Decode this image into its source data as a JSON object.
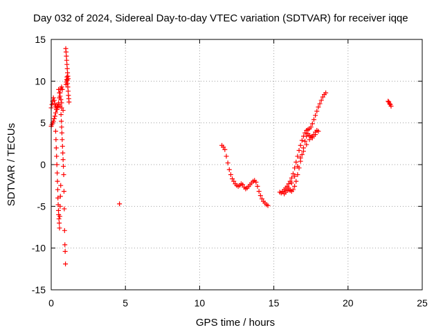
{
  "chart_data": {
    "type": "scatter",
    "title": "Day 032 of 2024, Sidereal Day-to-day VTEC variation (SDTVAR) for receiver iqqe",
    "xlabel": "GPS time / hours",
    "ylabel": "SDTVAR / TECUs",
    "xlim": [
      0,
      25
    ],
    "ylim": [
      -15,
      15
    ],
    "grid": true,
    "marker": "+",
    "xticks": [
      0,
      5,
      10,
      15,
      20,
      25
    ],
    "yticks": [
      -15,
      -10,
      -5,
      0,
      5,
      10,
      15
    ],
    "xtick_labels": [
      "0",
      "5",
      "10",
      "15",
      "20",
      "25"
    ],
    "ytick_labels": [
      "-15",
      "-10",
      "-5",
      "0",
      "5",
      "10",
      "15"
    ],
    "series": [
      {
        "name": "SDTVAR",
        "color": "#ff0000",
        "x": [
          0.0,
          0.05,
          0.1,
          0.15,
          0.2,
          0.25,
          0.3,
          0.35,
          0.4,
          0.45,
          0.5,
          0.55,
          0.6,
          0.65,
          0.7,
          0.75,
          0.0,
          0.05,
          0.1,
          0.15,
          0.2,
          0.25,
          0.3,
          0.35,
          0.4,
          0.5,
          0.6,
          0.7,
          0.8,
          0.3,
          0.32,
          0.34,
          0.36,
          0.38,
          0.4,
          0.42,
          0.44,
          0.45,
          0.47,
          0.49,
          0.5,
          0.52,
          0.54,
          0.56,
          0.58,
          0.6,
          0.62,
          0.64,
          0.66,
          0.68,
          0.7,
          0.72,
          0.74,
          0.76,
          0.78,
          0.8,
          0.82,
          0.84,
          0.86,
          0.88,
          0.9,
          0.92,
          0.94,
          0.96,
          0.98,
          1.0,
          1.02,
          1.04,
          1.06,
          1.08,
          1.1,
          1.12,
          1.14,
          1.0,
          1.02,
          1.04,
          1.06,
          1.08,
          1.1,
          1.12,
          1.14,
          1.16,
          1.18,
          1.2,
          0.5,
          0.55,
          0.6,
          0.65,
          0.7,
          4.6,
          11.5,
          11.6,
          11.7,
          11.8,
          11.9,
          12.0,
          12.1,
          12.2,
          12.3,
          12.4,
          12.5,
          12.6,
          12.7,
          12.8,
          12.9,
          13.0,
          13.1,
          13.2,
          13.3,
          13.4,
          13.5,
          13.6,
          13.7,
          13.8,
          13.9,
          14.0,
          14.1,
          14.2,
          14.3,
          14.4,
          14.5,
          14.6,
          15.4,
          15.5,
          15.6,
          15.7,
          15.8,
          15.9,
          16.0,
          16.1,
          16.2,
          16.3,
          16.4,
          16.5,
          16.6,
          16.7,
          16.8,
          16.9,
          17.0,
          17.1,
          17.2,
          17.3,
          17.4,
          17.5,
          17.6,
          17.7,
          17.8,
          17.9,
          18.0,
          18.1,
          18.2,
          18.3,
          18.4,
          18.5,
          15.7,
          15.8,
          15.9,
          16.0,
          16.1,
          16.2,
          16.3,
          16.4,
          16.5,
          16.6,
          16.7,
          16.8,
          16.9,
          17.0,
          17.1,
          17.2,
          17.3,
          17.4,
          17.5,
          17.6,
          17.7,
          17.8,
          17.9,
          18.0,
          16.0,
          16.2,
          16.4,
          16.6,
          16.8,
          17.0,
          17.2,
          17.4,
          17.6,
          17.8,
          22.7,
          22.75,
          22.8,
          22.85,
          22.9
        ],
        "y": [
          6.8,
          7.2,
          7.6,
          8.0,
          7.7,
          7.3,
          7.0,
          6.8,
          6.6,
          7.0,
          7.4,
          8.0,
          8.6,
          9.1,
          9.3,
          9.0,
          4.6,
          4.8,
          5.0,
          5.2,
          5.5,
          5.8,
          6.2,
          6.6,
          6.9,
          7.2,
          7.0,
          6.8,
          6.5,
          4.0,
          3.0,
          2.0,
          1.0,
          0.0,
          -1.0,
          -2.0,
          -3.0,
          -4.0,
          -4.8,
          -5.5,
          -6.0,
          -6.5,
          -7.0,
          -7.6,
          -6.2,
          -5.0,
          -3.8,
          -2.5,
          6.0,
          5.2,
          4.5,
          3.8,
          3.0,
          2.2,
          1.4,
          0.6,
          -0.2,
          -1.2,
          -3.2,
          -5.3,
          -7.9,
          -9.6,
          -10.4,
          -11.9,
          13.9,
          13.5,
          13.0,
          12.5,
          12.0,
          11.5,
          11.0,
          10.6,
          10.3,
          9.6,
          9.9,
          10.2,
          10.5,
          10.1,
          9.7,
          9.3,
          8.8,
          8.3,
          7.9,
          7.5,
          9.0,
          8.6,
          8.2,
          7.8,
          7.4,
          -4.7,
          2.3,
          2.1,
          1.8,
          1.0,
          0.2,
          -0.6,
          -1.2,
          -1.7,
          -2.0,
          -2.3,
          -2.5,
          -2.6,
          -2.5,
          -2.3,
          -2.4,
          -2.7,
          -2.9,
          -2.8,
          -2.6,
          -2.4,
          -2.2,
          -2.0,
          -1.9,
          -2.1,
          -2.6,
          -3.2,
          -3.7,
          -4.1,
          -4.4,
          -4.6,
          -4.8,
          -4.9,
          -3.3,
          -3.4,
          -3.2,
          -3.0,
          -2.8,
          -2.6,
          -2.3,
          -2.0,
          -1.6,
          -1.1,
          -0.4,
          0.3,
          1.0,
          1.7,
          2.3,
          2.9,
          3.4,
          3.8,
          4.1,
          4.2,
          4.3,
          4.5,
          4.9,
          5.4,
          5.9,
          6.4,
          6.9,
          7.3,
          7.7,
          8.1,
          8.4,
          8.6,
          -3.5,
          -3.3,
          -3.1,
          -3.0,
          -3.1,
          -3.2,
          -3.0,
          -2.6,
          -2.0,
          -1.2,
          -0.4,
          0.4,
          1.2,
          2.0,
          2.8,
          3.4,
          3.7,
          3.5,
          3.3,
          3.4,
          3.6,
          3.9,
          4.1,
          4.0,
          -2.8,
          -2.2,
          -1.4,
          -0.2,
          0.8,
          1.6,
          2.4,
          3.0,
          3.2,
          3.6,
          7.6,
          7.5,
          7.3,
          7.2,
          7.0
        ]
      }
    ]
  }
}
